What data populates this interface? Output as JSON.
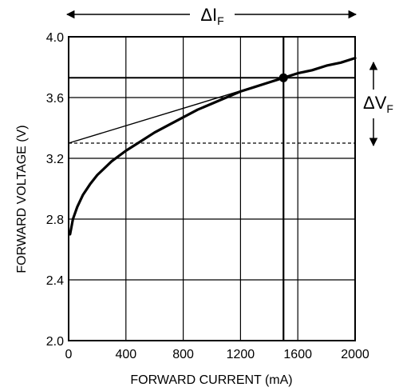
{
  "chart_data": {
    "type": "line",
    "xlabel": "FORWARD CURRENT (mA)",
    "ylabel": "FORWARD VOLTAGE (V)",
    "xlim": [
      0,
      2000
    ],
    "ylim": [
      2.0,
      4.0
    ],
    "x_ticks": [
      "0",
      "400",
      "800",
      "1200",
      "1600",
      "2000"
    ],
    "y_ticks": [
      "2.0",
      "2.4",
      "2.8",
      "3.2",
      "3.6",
      "4.0"
    ],
    "grid": true,
    "series": [
      {
        "x": [
          10,
          30,
          60,
          100,
          150,
          200,
          300,
          400,
          500,
          600,
          700,
          800,
          900,
          1000,
          1100,
          1200,
          1300,
          1400,
          1500,
          1600,
          1700,
          1800,
          1900,
          2000
        ],
        "y": [
          2.7,
          2.8,
          2.88,
          2.96,
          3.03,
          3.09,
          3.18,
          3.25,
          3.31,
          3.37,
          3.42,
          3.47,
          3.52,
          3.56,
          3.6,
          3.64,
          3.67,
          3.7,
          3.73,
          3.76,
          3.78,
          3.81,
          3.83,
          3.86
        ]
      }
    ],
    "annotations": {
      "operating_point": {
        "x": 1500,
        "y": 3.73
      },
      "tangent_line": {
        "x": [
          0,
          1500
        ],
        "y": [
          3.3,
          3.73
        ]
      },
      "dashed_level": {
        "y": 3.3
      },
      "horizontal_marker": {
        "y": 3.73
      },
      "vertical_marker": {
        "x": 1500
      },
      "delta_i": {
        "symbol": "ΔI",
        "subscript": "F"
      },
      "delta_v": {
        "symbol": "ΔV",
        "subscript": "F"
      }
    }
  }
}
